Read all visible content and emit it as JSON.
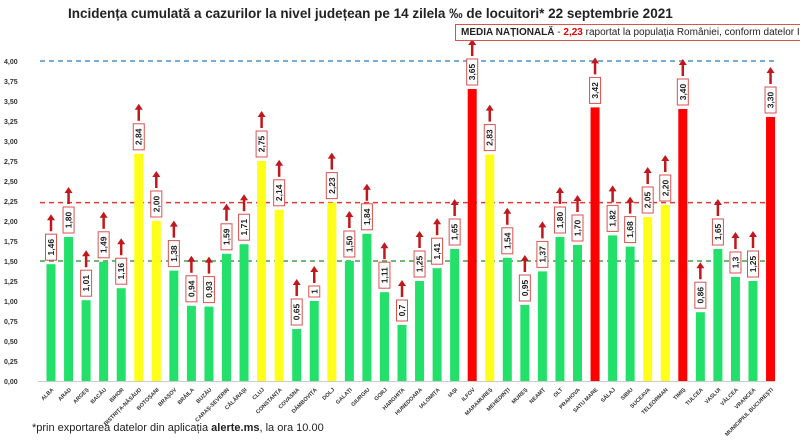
{
  "title": "Incidența cumulată a cazurilor la nivel județean pe 14 zilela ‰ de locuitori* 22 septembrie 2021",
  "media": {
    "label": "MEDIA NAȚIONALĂ",
    "sep": " - ",
    "value": "2,23",
    "text": " raportat la populația României, conform datelor INS"
  },
  "footnote": {
    "pre": "*prin exportarea datelor din aplicația ",
    "bold": "alerte.ms",
    "post": ", la ora 10.00"
  },
  "chart_data": {
    "type": "bar",
    "title": "Incidența cumulată a cazurilor la nivel județean pe 14 zilela ‰ de locuitori* 22 septembrie 2021",
    "ylim": [
      0,
      4
    ],
    "yticks": [
      "0,00",
      "0,25",
      "0,50",
      "0,75",
      "1,00",
      "1,25",
      "1,50",
      "1,75",
      "2,00",
      "2,25",
      "2,50",
      "2,75",
      "3,00",
      "3,25",
      "3,50",
      "3,75",
      "4,00"
    ],
    "grid": false,
    "reference_lines": [
      {
        "value": 4.0,
        "color": "#4a90c8"
      },
      {
        "value": 2.23,
        "color": "#e53935"
      },
      {
        "value": 1.5,
        "color": "#43a047"
      }
    ],
    "colors": {
      "green": "#22e06a",
      "yellow": "#ffff1a",
      "red": "#ff0000",
      "arrow": "#c0181c"
    },
    "categories": [
      "ALBA",
      "ARAD",
      "ARGEȘ",
      "BACĂU",
      "BIHOR",
      "BISTRIȚA-NĂSĂUD",
      "BOTOȘANI",
      "BRAȘOV",
      "BRĂILA",
      "BUZĂU",
      "CARAȘ-SEVERIN",
      "CĂLĂRAȘI",
      "CLUJ",
      "CONSTANȚA",
      "COVASNA",
      "DÂMBOVIȚA",
      "DOLJ",
      "GALAȚI",
      "GIURGIU",
      "GORJ",
      "HARGHITA",
      "HUNEDOARA",
      "IALOMIȚA",
      "IAȘI",
      "ILFOV",
      "MARAMUREȘ",
      "MEHEDINȚI",
      "MUREȘ",
      "NEAMȚ",
      "OLT",
      "PRAHOVA",
      "SATU MARE",
      "SĂLAJ",
      "SIBIU",
      "SUCEAVA",
      "TELEORMAN",
      "TIMIȘ",
      "TULCEA",
      "VASLUI",
      "VÂLCEA",
      "VRANCEA",
      "MUNICIPIUL BUCUREȘTI"
    ],
    "values": [
      1.46,
      1.8,
      1.01,
      1.49,
      1.16,
      2.84,
      2.0,
      1.38,
      0.94,
      0.93,
      1.59,
      1.71,
      2.75,
      2.14,
      0.65,
      1,
      2.23,
      1.5,
      1.84,
      1.11,
      0.7,
      1.25,
      1.41,
      1.65,
      3.65,
      2.83,
      1.54,
      0.95,
      1.37,
      1.8,
      1.7,
      3.42,
      1.82,
      1.68,
      2.05,
      2.2,
      3.4,
      0.86,
      1.65,
      1.3,
      1.25,
      3.3
    ],
    "labels": [
      "1,46",
      "1,80",
      "1,01",
      "1,49",
      "1,16",
      "2,84",
      "2,00",
      "1,38",
      "0,94",
      "0,93",
      "1,59",
      "1,71",
      "2,75",
      "2,14",
      "0,65",
      "1",
      "2,23",
      "1,50",
      "1,84",
      "1,11",
      "0,7",
      "1,25",
      "1,41",
      "1,65",
      "3,65",
      "2,83",
      "1,54",
      "0,95",
      "1,37",
      "1,80",
      "1,70",
      "3,42",
      "1,82",
      "1,68",
      "2,05",
      "2,20",
      "3,40",
      "0,86",
      "1,65",
      "1,3",
      "1,25",
      "3,30"
    ],
    "bar_colors": [
      "green",
      "green",
      "green",
      "green",
      "green",
      "yellow",
      "yellow",
      "green",
      "green",
      "green",
      "green",
      "green",
      "yellow",
      "yellow",
      "green",
      "green",
      "yellow",
      "green",
      "green",
      "green",
      "green",
      "green",
      "green",
      "green",
      "red",
      "yellow",
      "green",
      "green",
      "green",
      "green",
      "green",
      "red",
      "green",
      "green",
      "yellow",
      "yellow",
      "red",
      "green",
      "green",
      "green",
      "green",
      "red"
    ]
  }
}
